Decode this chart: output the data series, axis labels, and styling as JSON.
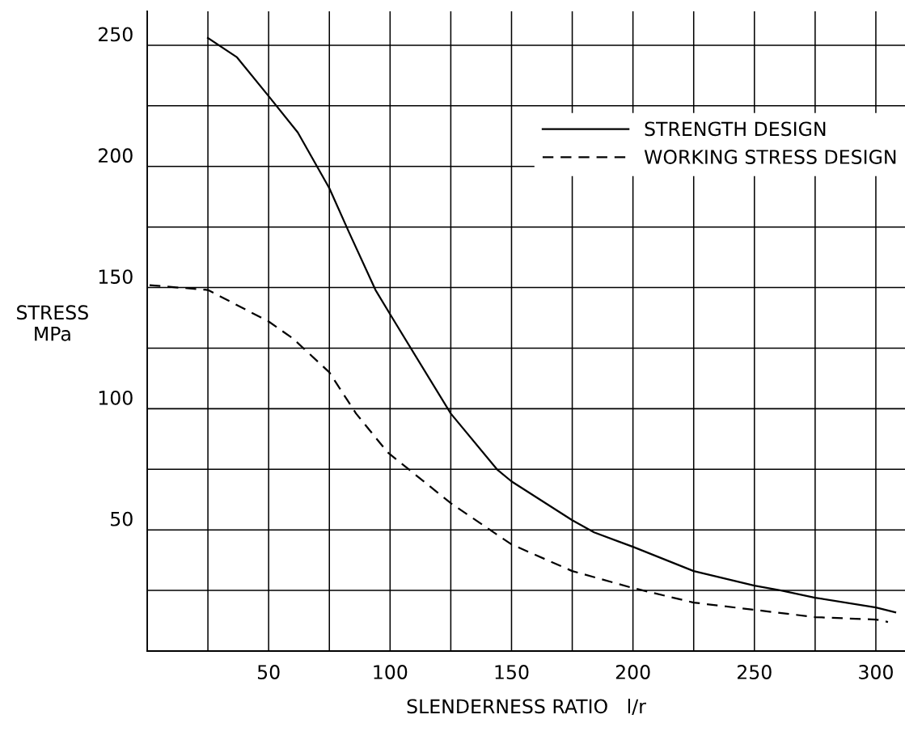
{
  "chart_data": {
    "type": "line",
    "xlabel": "SLENDERNESS RATIO   l/r",
    "ylabel": "STRESS\nMPa",
    "xlim": [
      0,
      312
    ],
    "ylim": [
      0,
      264
    ],
    "xticks": [
      {
        "value": 0,
        "label": null
      },
      {
        "value": 25,
        "label": null
      },
      50,
      {
        "value": 75,
        "label": null
      },
      100,
      {
        "value": 125,
        "label": null
      },
      150,
      {
        "value": 175,
        "label": null
      },
      200,
      {
        "value": 225,
        "label": null
      },
      250,
      {
        "value": 275,
        "label": null
      },
      300
    ],
    "yticks": [
      {
        "value": 0,
        "label": null
      },
      {
        "value": 25,
        "label": null
      },
      50,
      {
        "value": 75,
        "label": null
      },
      100,
      {
        "value": 125,
        "label": null
      },
      150,
      {
        "value": 175,
        "label": null
      },
      200,
      {
        "value": 225,
        "label": null
      },
      250
    ],
    "grid": true,
    "legend": "top right",
    "marker": "none",
    "series": [
      {
        "name": "STRENGTH DESIGN",
        "color": "#000000",
        "line_style": "solid",
        "x": [
          25,
          37,
          50,
          62,
          75,
          83,
          94,
          100,
          125,
          144,
          150,
          175,
          184,
          200,
          225,
          250,
          261,
          275,
          300,
          308
        ],
        "values": [
          253,
          245,
          229,
          214,
          191,
          173,
          149,
          139,
          98,
          75,
          70,
          54,
          49,
          43,
          33,
          27,
          25,
          22,
          18,
          16
        ]
      },
      {
        "name": "WORKING STRESS DESIGN",
        "color": "#000000",
        "line_style": "dashed",
        "x": [
          1,
          25,
          50,
          60,
          75,
          86,
          99,
          125,
          150,
          175,
          200,
          225,
          250,
          275,
          300,
          305
        ],
        "values": [
          151,
          149,
          136,
          129,
          115,
          98,
          82,
          61,
          44,
          33,
          26,
          20,
          17,
          14,
          13,
          12
        ]
      }
    ]
  }
}
